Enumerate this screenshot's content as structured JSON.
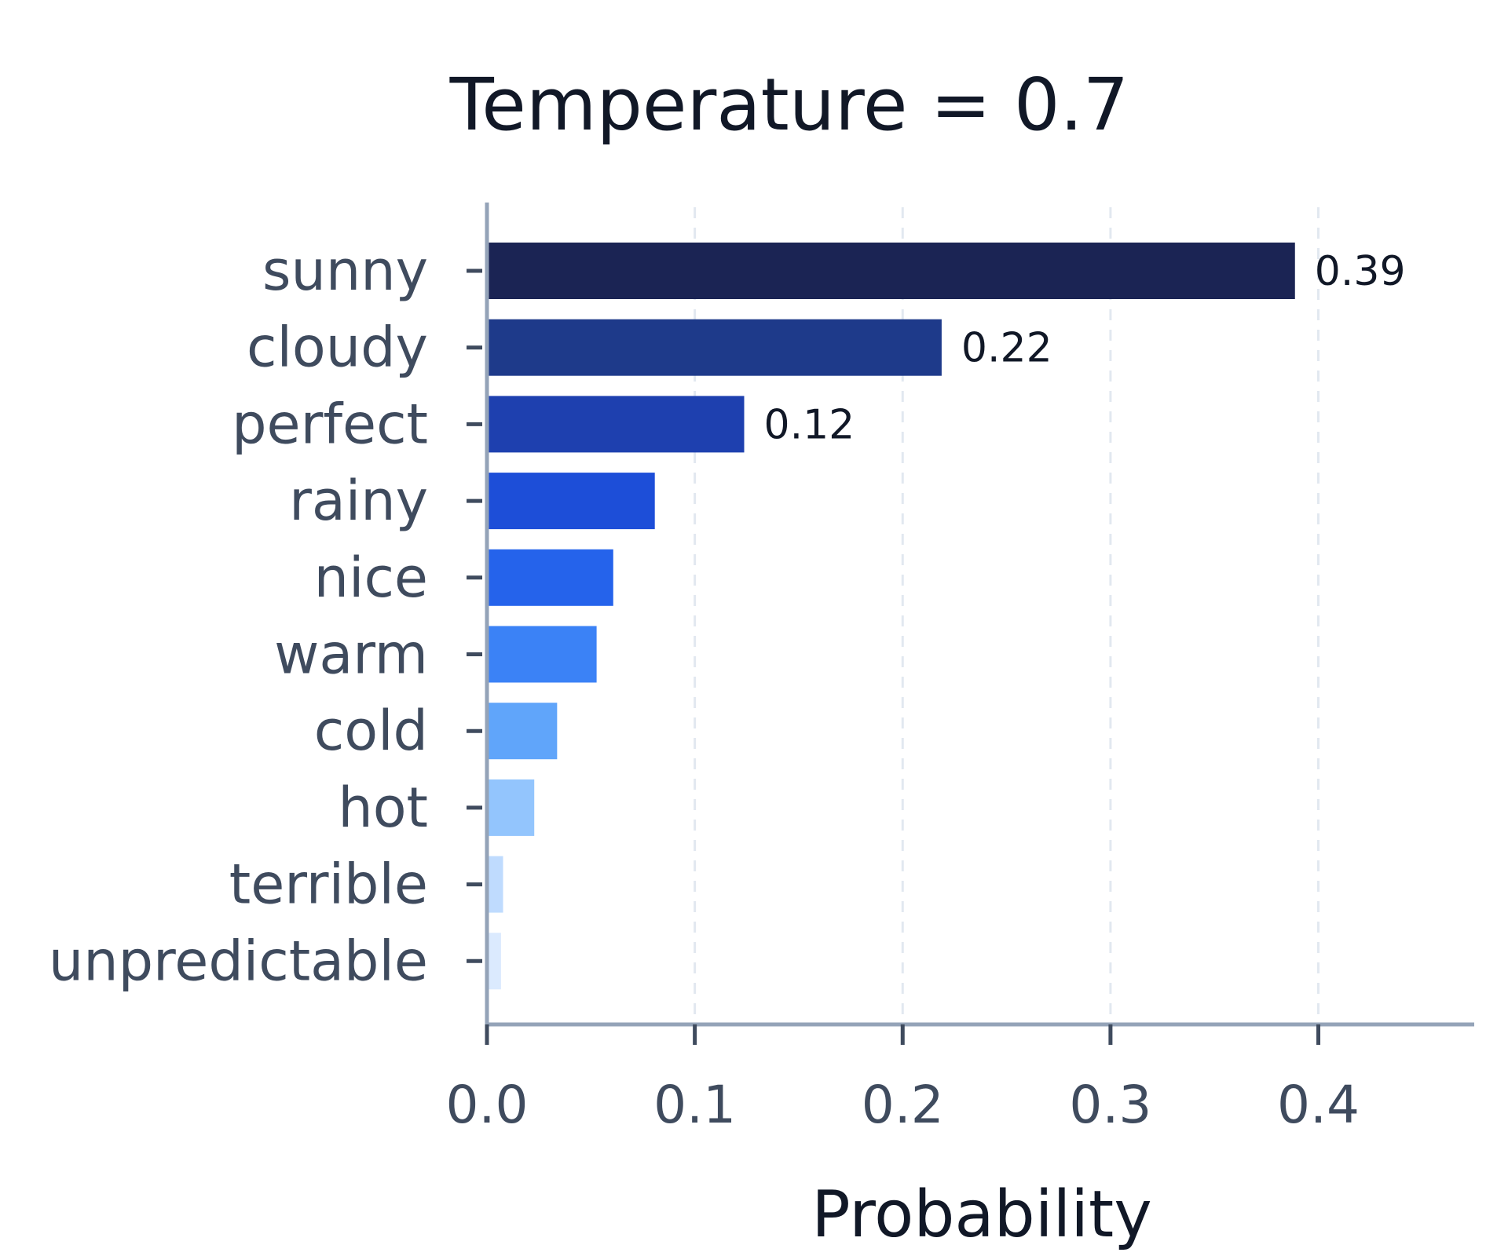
{
  "chart_data": {
    "type": "bar",
    "orientation": "horizontal",
    "title": "Temperature = 0.7",
    "xlabel": "Probability",
    "ylabel": "",
    "xlim": [
      0,
      0.475
    ],
    "xticks": [
      0.0,
      0.1,
      0.2,
      0.3,
      0.4
    ],
    "xtick_labels": [
      "0.0",
      "0.1",
      "0.2",
      "0.3",
      "0.4"
    ],
    "grid": "vertical dashed",
    "categories": [
      "sunny",
      "cloudy",
      "perfect",
      "rainy",
      "nice",
      "warm",
      "cold",
      "hot",
      "terrible",
      "unpredictable"
    ],
    "values": [
      0.388,
      0.218,
      0.123,
      0.08,
      0.06,
      0.052,
      0.033,
      0.022,
      0.007,
      0.006
    ],
    "value_labels": [
      "0.39",
      "0.22",
      "0.12",
      "",
      "",
      "",
      "",
      "",
      "",
      ""
    ],
    "colors": [
      "#1b2454",
      "#1e3a8a",
      "#1e40af",
      "#1d4ed8",
      "#2563eb",
      "#3b82f6",
      "#60a5fa",
      "#93c5fd",
      "#bfdbfe",
      "#dbeafe"
    ]
  },
  "style": {
    "axis_color": "#94a3b8",
    "grid_color": "#e2e8f0",
    "text_color": "#111827",
    "label_color": "#3f4b5e"
  }
}
